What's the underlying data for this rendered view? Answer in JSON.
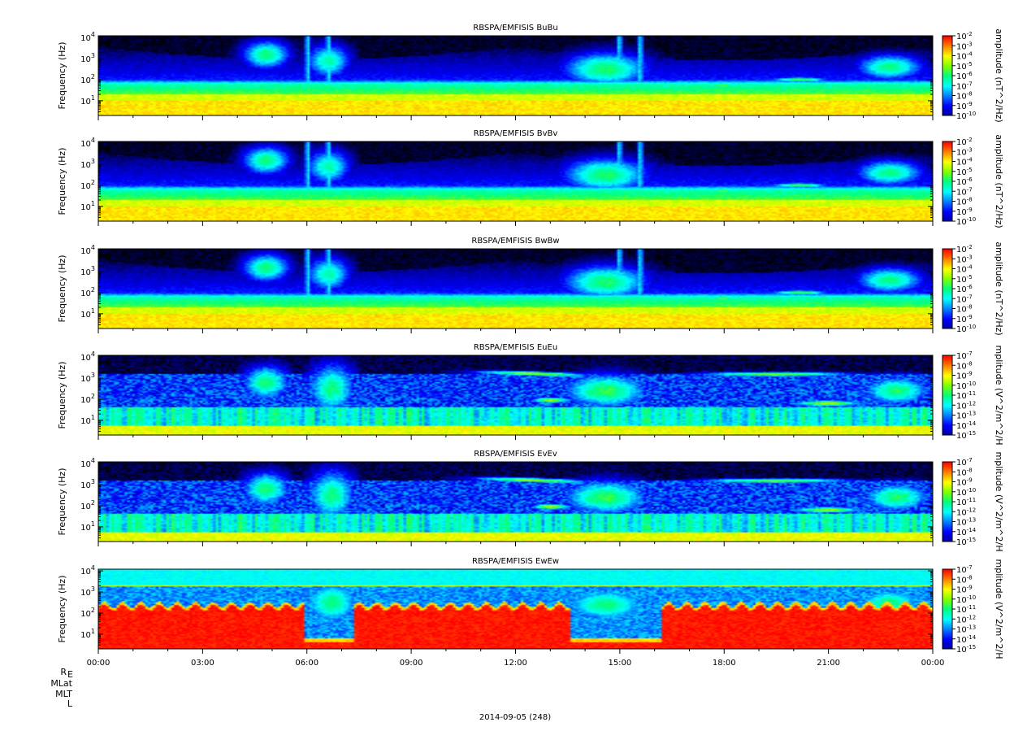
{
  "chart_data": [
    {
      "type": "heatmap",
      "title": "RBSPA/EMFISIS  BuBu",
      "ylabel": "Frequency (Hz)",
      "yscale": "log",
      "ylim": [
        2,
        12000
      ],
      "yticks": [
        10,
        100,
        1000,
        10000
      ],
      "colorbar_label": "amplitude (nT^2/Hz)",
      "colorbar_range": [
        -10,
        -2
      ],
      "colorbar_ticks": [
        -10,
        -9,
        -8,
        -7,
        -6,
        -5,
        -4,
        -3,
        -2
      ],
      "style": "B"
    },
    {
      "type": "heatmap",
      "title": "RBSPA/EMFISIS  BvBv",
      "ylabel": "Frequency (Hz)",
      "yscale": "log",
      "ylim": [
        2,
        12000
      ],
      "yticks": [
        10,
        100,
        1000,
        10000
      ],
      "colorbar_label": "amplitude (nT^2/Hz)",
      "colorbar_range": [
        -10,
        -2
      ],
      "colorbar_ticks": [
        -10,
        -9,
        -8,
        -7,
        -6,
        -5,
        -4,
        -3,
        -2
      ],
      "style": "B"
    },
    {
      "type": "heatmap",
      "title": "RBSPA/EMFISIS  BwBw",
      "ylabel": "Frequency (Hz)",
      "yscale": "log",
      "ylim": [
        2,
        12000
      ],
      "yticks": [
        10,
        100,
        1000,
        10000
      ],
      "colorbar_label": "amplitude (nT^2/Hz)",
      "colorbar_range": [
        -10,
        -2
      ],
      "colorbar_ticks": [
        -10,
        -9,
        -8,
        -7,
        -6,
        -5,
        -4,
        -3,
        -2
      ],
      "style": "B"
    },
    {
      "type": "heatmap",
      "title": "RBSPA/EMFISIS  EuEu",
      "ylabel": "Frequency (Hz)",
      "yscale": "log",
      "ylim": [
        2,
        12000
      ],
      "yticks": [
        10,
        100,
        1000,
        10000
      ],
      "colorbar_label": "mplitude (V^2/m^2/H",
      "colorbar_range": [
        -15,
        -7
      ],
      "colorbar_ticks": [
        -15,
        -14,
        -13,
        -12,
        -11,
        -10,
        -9,
        -8,
        -7
      ],
      "style": "E"
    },
    {
      "type": "heatmap",
      "title": "RBSPA/EMFISIS  EvEv",
      "ylabel": "Frequency (Hz)",
      "yscale": "log",
      "ylim": [
        2,
        12000
      ],
      "yticks": [
        10,
        100,
        1000,
        10000
      ],
      "colorbar_label": "mplitude (V^2/m^2/H",
      "colorbar_range": [
        -15,
        -7
      ],
      "colorbar_ticks": [
        -15,
        -14,
        -13,
        -12,
        -11,
        -10,
        -9,
        -8,
        -7
      ],
      "style": "E"
    },
    {
      "type": "heatmap",
      "title": "RBSPA/EMFISIS  EwEw",
      "ylabel": "Frequency (Hz)",
      "yscale": "log",
      "ylim": [
        2,
        12000
      ],
      "yticks": [
        10,
        100,
        1000,
        10000
      ],
      "colorbar_label": "mplitude (V^2/m^2/H",
      "colorbar_range": [
        -15,
        -7
      ],
      "colorbar_ticks": [
        -15,
        -14,
        -13,
        -12,
        -11,
        -10,
        -9,
        -8,
        -7
      ],
      "style": "W"
    }
  ],
  "xaxis": {
    "range_hours": [
      0,
      24
    ],
    "tick_hours": [
      0,
      3,
      6,
      9,
      12,
      15,
      18,
      21,
      24
    ],
    "tick_labels": [
      "00:00",
      "03:00",
      "06:00",
      "09:00",
      "12:00",
      "15:00",
      "18:00",
      "21:00",
      "00:00"
    ]
  },
  "ephemeris_labels": [
    "R",
    "MLat",
    "MLT",
    "L"
  ],
  "ephemeris_subscript": "E",
  "date_label": "2014-09-05 (248)",
  "colormap": [
    "#000000",
    "#0000a0",
    "#0000ff",
    "#0080ff",
    "#00ffff",
    "#00ff80",
    "#80ff00",
    "#ffff00",
    "#ff8000",
    "#ff0000"
  ]
}
